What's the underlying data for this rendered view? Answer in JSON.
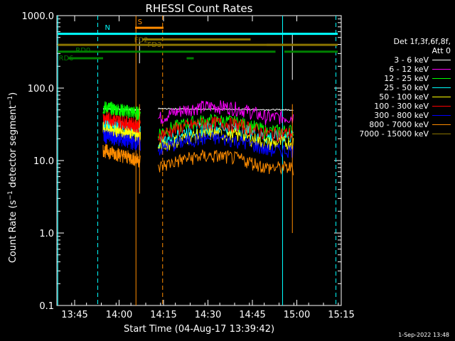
{
  "chart_data": {
    "type": "line",
    "title": "RHESSI Count Rates",
    "xlabel": "Start Time (04-Aug-17 13:39:42)",
    "ylabel": "Count Rate (s⁻¹ detector segment⁻¹)",
    "yscale": "log",
    "ylim": [
      0.1,
      1000
    ],
    "xlim_minutes": [
      13.65,
      15.25
    ],
    "x_ticks": [
      "13:45",
      "14:00",
      "14:15",
      "14:30",
      "14:45",
      "15:00",
      "15:15"
    ],
    "y_ticks": [
      "0.1",
      "1.0",
      "10.0",
      "100.0",
      "1000.0"
    ],
    "legend_header": [
      "Det 1f,3f,6f,8f,",
      "Att 0"
    ],
    "colors": {
      "3-6": "#ffffff",
      "6-12": "#ff00ff",
      "12-25": "#00ff00",
      "25-50": "#00ffff",
      "50-100": "#ffff00",
      "100-300": "#ff0000",
      "300-800": "#0000ff",
      "800-7000": "#ff8c00",
      "7000-15000": "#8b7500"
    },
    "series": [
      {
        "name": "3 - 6 keV",
        "key": "3-6",
        "segments": [
          [
            13.91,
            14.12,
            52,
            50
          ],
          [
            14.22,
            14.98,
            52,
            50
          ]
        ]
      },
      {
        "name": "6 - 12 keV",
        "key": "6-12",
        "segments": [
          [
            14.22,
            14.98,
            38,
            40
          ]
        ]
      },
      {
        "name": "12 - 25 keV",
        "key": "12-25",
        "segments": [
          [
            13.91,
            14.12,
            55,
            45
          ],
          [
            14.22,
            14.98,
            24,
            26
          ]
        ]
      },
      {
        "name": "25 - 50 keV",
        "key": "25-50",
        "segments": [
          [
            13.91,
            14.12,
            32,
            26
          ],
          [
            14.22,
            14.98,
            18,
            22
          ]
        ]
      },
      {
        "name": "50 - 100 keV",
        "key": "50-100",
        "segments": [
          [
            13.91,
            14.12,
            28,
            22
          ],
          [
            14.22,
            14.98,
            15,
            18
          ]
        ]
      },
      {
        "name": "100 - 300 keV",
        "key": "100-300",
        "segments": [
          [
            13.91,
            14.12,
            40,
            30
          ],
          [
            14.22,
            14.98,
            22,
            24
          ]
        ]
      },
      {
        "name": "300 - 800 keV",
        "key": "300-800",
        "segments": [
          [
            13.91,
            14.12,
            22,
            17
          ],
          [
            14.22,
            14.98,
            14,
            14
          ]
        ]
      },
      {
        "name": "800 - 7000 keV",
        "key": "800-7000",
        "segments": [
          [
            13.91,
            14.12,
            14,
            10
          ],
          [
            14.22,
            14.98,
            8,
            8
          ]
        ]
      },
      {
        "name": "7000 - 15000 keV",
        "key": "7000-15000",
        "segments": []
      }
    ],
    "annotations": [
      {
        "text": "RD6",
        "color": "#008000"
      },
      {
        "text": "RD0",
        "color": "#008000"
      },
      {
        "text": "FD2",
        "color": "#8b7500"
      },
      {
        "text": "FD3",
        "color": "#8b7500"
      },
      {
        "text": "S",
        "color": "#ff8c00"
      },
      {
        "text": "N",
        "color": "#00ffff"
      }
    ]
  },
  "timestamp": "1-Sep-2022 13:48"
}
